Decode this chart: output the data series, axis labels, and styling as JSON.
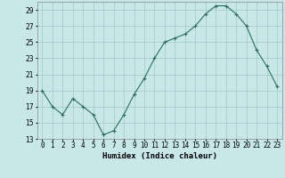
{
  "x": [
    0,
    1,
    2,
    3,
    4,
    5,
    6,
    7,
    8,
    9,
    10,
    11,
    12,
    13,
    14,
    15,
    16,
    17,
    18,
    19,
    20,
    21,
    22,
    23
  ],
  "y": [
    19,
    17,
    16,
    18,
    17,
    16,
    13.5,
    14,
    16,
    18.5,
    20.5,
    23,
    25,
    25.5,
    26,
    27,
    28.5,
    29.5,
    29.5,
    28.5,
    27,
    24,
    22,
    19.5
  ],
  "xlabel": "Humidex (Indice chaleur)",
  "ylim": [
    13,
    30
  ],
  "xlim": [
    -0.5,
    23.5
  ],
  "yticks": [
    13,
    15,
    17,
    19,
    21,
    23,
    25,
    27,
    29
  ],
  "line_color": "#2d6b5e",
  "marker": "+",
  "bg_color": "#c8e8e8",
  "grid_color": "#a0c8c8",
  "label_fontsize": 6.5,
  "tick_fontsize": 5.5
}
